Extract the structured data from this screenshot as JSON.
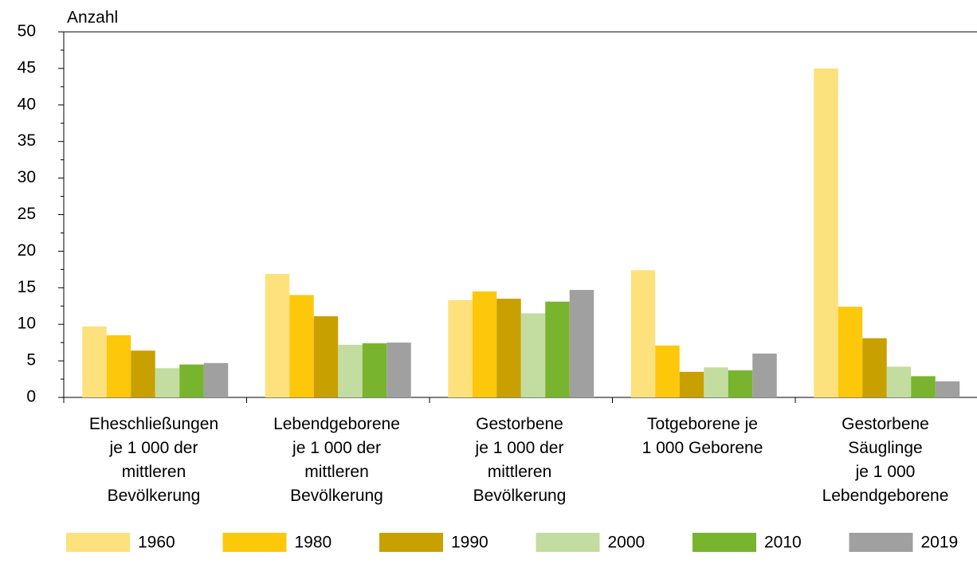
{
  "chart_data": {
    "type": "bar",
    "y_label": "Anzahl",
    "categories": [
      "Eheschließungen\nje 1 000 der\nmittleren\nBevölkerung",
      "Lebendgeborene\nje 1 000 der\nmittleren\nBevölkerung",
      "Gestorbene\nje 1 000 der\nmittleren\nBevölkerung",
      "Totgeborene je\n1 000 Geborene",
      "Gestorbene\nSäuglinge\nje 1 000\nLebendgeborene"
    ],
    "series": [
      {
        "name": "1960",
        "color": "#fde17c",
        "values": [
          9.7,
          16.9,
          13.3,
          17.4,
          45.0
        ]
      },
      {
        "name": "1980",
        "color": "#fdc80a",
        "values": [
          8.5,
          14.0,
          14.5,
          7.1,
          12.4
        ]
      },
      {
        "name": "1990",
        "color": "#c8a000",
        "values": [
          6.4,
          11.1,
          13.5,
          3.5,
          8.1
        ]
      },
      {
        "name": "2000",
        "color": "#c3dca0",
        "values": [
          4.0,
          7.2,
          11.5,
          4.1,
          4.2
        ]
      },
      {
        "name": "2010",
        "color": "#78b42d",
        "values": [
          4.5,
          7.4,
          13.1,
          3.7,
          2.9
        ]
      },
      {
        "name": "2019",
        "color": "#a0a0a0",
        "values": [
          4.7,
          7.5,
          14.7,
          6.0,
          2.2
        ]
      }
    ],
    "ylim": [
      0,
      50
    ],
    "yticks": [
      0,
      5,
      10,
      15,
      20,
      25,
      30,
      35,
      40,
      45,
      50
    ],
    "legend": "bottom"
  }
}
